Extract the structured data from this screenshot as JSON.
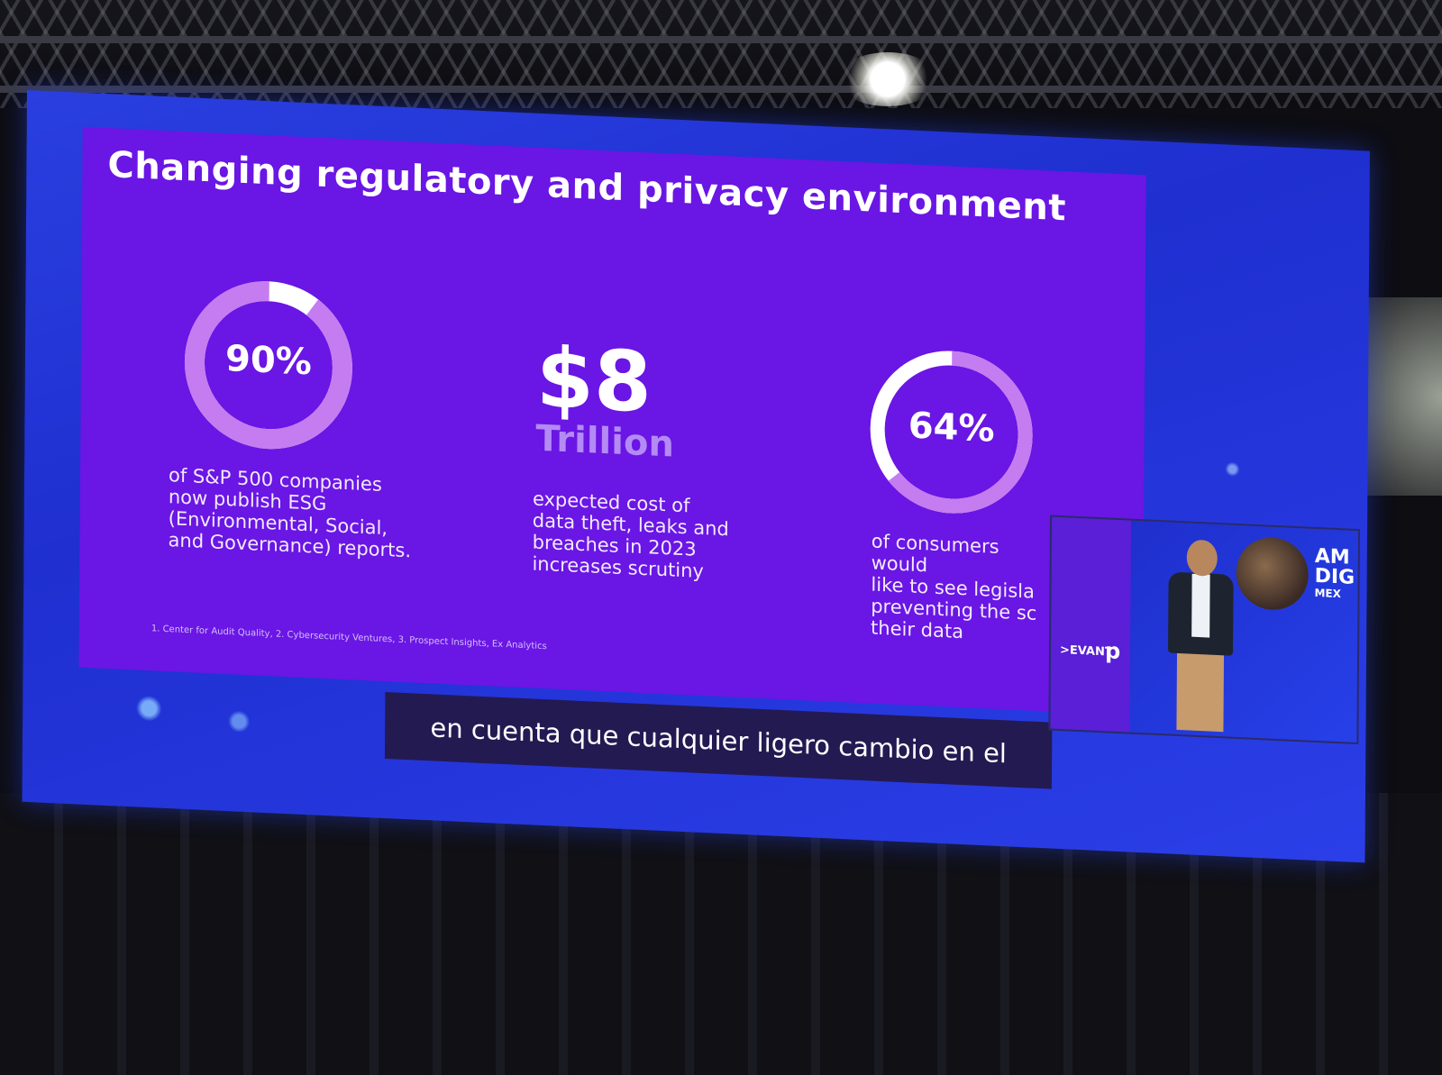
{
  "slide": {
    "title": "Changing regulatory and privacy environment",
    "stats": [
      {
        "value": "90%",
        "fraction": 0.9,
        "description": "of S&P 500 companies\nnow publish ESG\n(Environmental, Social,\nand Governance) reports."
      },
      {
        "value": "$8",
        "unit": "Trillion",
        "description": "expected cost of\ndata theft, leaks and\nbreaches in 2023\nincreases scrutiny"
      },
      {
        "value": "64%",
        "fraction": 0.64,
        "description": "of consumers would\nlike to see legisla\npreventing the sc\ntheir data"
      }
    ],
    "footnote": "1. Center for Audit Quality, 2. Cybersecurity Ventures, 3. Prospect Insights, Ex Analytics"
  },
  "caption": {
    "text": "en cuenta que cualquier ligero cambio en el"
  },
  "inset": {
    "brand": ">EVANT",
    "logo": "p",
    "event_line1": "AM",
    "event_line2": "DIG",
    "event_line3": "MEX"
  },
  "colors": {
    "slide_background": "#6a16e4",
    "ring_fill": "#c57cf0",
    "ring_remainder": "#ffffff",
    "trillion": "#b48af5",
    "led_wall": "#2a3fe0",
    "caption_background": "#231a52"
  }
}
